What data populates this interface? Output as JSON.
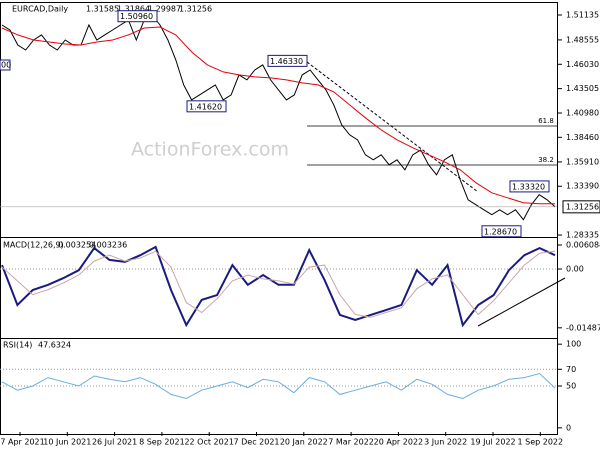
{
  "chart_data": [
    {
      "type": "line",
      "symbol": "EURCAD,Daily",
      "ohlc": {
        "open": 1.31585,
        "high": 1.31864,
        "low": 1.29987,
        "close": 1.31256
      },
      "watermark": "ActionForex.com",
      "series": [
        {
          "color": "#000000",
          "values": [
            1.501,
            1.4958,
            1.4803,
            1.4751,
            1.4855,
            1.4907,
            1.4803,
            1.4751,
            1.4855,
            1.4803,
            1.4803,
            1.501,
            1.4855,
            1.4907,
            1.4958,
            1.501,
            1.5062,
            1.4855,
            1.5062,
            1.5114,
            1.501,
            1.4855,
            1.4648,
            1.4389,
            1.4234,
            1.4286,
            1.4337,
            1.4389,
            1.4234,
            1.4286,
            1.4493,
            1.4441,
            1.4544,
            1.4596,
            1.4441,
            1.4337,
            1.4234,
            1.4286,
            1.4493,
            1.4544,
            1.4441,
            1.4337,
            1.4182,
            1.3975,
            1.3872,
            1.382,
            1.3665,
            1.3613,
            1.3665,
            1.3561,
            1.3613,
            1.3509,
            1.3665,
            1.3716,
            1.3561,
            1.3458,
            1.3613,
            1.3665,
            1.3406,
            1.3199,
            1.3147,
            1.3095,
            1.3044,
            1.3095,
            1.3044,
            1.3095,
            1.2992,
            1.3147,
            1.3251,
            1.3199,
            1.31256
          ]
        },
        {
          "color": "#e8000b",
          "values": [
            1.4979,
            1.4907,
            1.4855,
            1.4834,
            1.4813,
            1.4803,
            1.4834,
            1.4855,
            1.4907,
            1.4979,
            1.4989,
            1.4907,
            1.4731,
            1.4596,
            1.4524,
            1.4493,
            1.4472,
            1.4462,
            1.4441,
            1.441,
            1.4389,
            1.4317,
            1.4182,
            1.4048,
            1.3923,
            1.382,
            1.3737,
            1.3665,
            1.3592,
            1.3509,
            1.3375,
            1.3271,
            1.3219,
            1.3168,
            1.3157,
            1.3157
          ]
        }
      ],
      "ylim": [
        1.2813,
        1.5238
      ],
      "yticks": [
        1.51135,
        1.48555,
        {
          "value": 1.4603,
          "label": "1.46030"
        },
        1.43505,
        {
          "value": 1.4098,
          "label": "1.40980"
        },
        {
          "value": 1.3846,
          "label": "1.38460"
        },
        {
          "value": 1.3591,
          "label": "1.35910"
        },
        {
          "value": 1.3339,
          "label": "1.33390"
        },
        1.28335
      ],
      "annotations": [
        {
          "value": 1.5096,
          "label": "1.50960"
        },
        {
          "value": 1.4162,
          "label": "1.41620"
        },
        {
          "value": 1.4633,
          "label": "1.46330"
        },
        {
          "value": 1.3332,
          "label": "1.33320"
        },
        {
          "value": 1.2867,
          "label": "1.28670"
        }
      ],
      "partial_label": "00",
      "fib_levels": [
        61.8,
        38.2
      ]
    },
    {
      "type": "line",
      "indicator": "MACD(12,26,9)",
      "macd_value": 0.003254,
      "signal_value": 0.003236,
      "series": [
        {
          "color": "#1a1a80",
          "values": [
            0.001,
            -0.0091,
            -0.0053,
            -0.004,
            -0.0023,
            -0.0003,
            0.0053,
            0.0023,
            0.0018,
            0.0035,
            0.0056,
            -0.0053,
            -0.0142,
            -0.0078,
            -0.0066,
            0.001,
            -0.004,
            -0.0015,
            -0.004,
            -0.004,
            0.0048,
            -0.0028,
            -0.0116,
            -0.0129,
            -0.0116,
            -0.0104,
            -0.0091,
            -0.0003,
            -0.004,
            0.001,
            -0.0142,
            -0.0091,
            -0.0066,
            -0.0003,
            0.0035,
            0.0053,
            0.0035
          ]
        },
        {
          "color": "#c8a8a8",
          "values": [
            0.0005,
            -0.003,
            -0.0065,
            -0.0052,
            -0.0035,
            -0.0015,
            0.002,
            0.0035,
            0.002,
            0.0028,
            0.0045,
            0.0005,
            -0.0085,
            -0.011,
            -0.0075,
            -0.003,
            -0.0015,
            -0.0025,
            -0.003,
            -0.0038,
            0.0005,
            0.001,
            -0.0065,
            -0.0115,
            -0.0122,
            -0.011,
            -0.0098,
            -0.005,
            -0.0025,
            -0.0015,
            -0.0065,
            -0.0115,
            -0.008,
            -0.0035,
            0.001,
            0.004,
            0.0045
          ]
        }
      ],
      "ylim": [
        -0.0172,
        0.0076
      ],
      "yticks": [
        0.006084,
        {
          "value": 0,
          "label": "0.00"
        },
        -0.014876
      ]
    },
    {
      "type": "line",
      "indicator": "RSI(14)",
      "rsi_value": 47.6324,
      "series": [
        {
          "color": "#6aaee0",
          "values": [
            55,
            45,
            50,
            60,
            55,
            50,
            62,
            58,
            55,
            60,
            52,
            40,
            35,
            45,
            50,
            55,
            48,
            58,
            55,
            42,
            60,
            55,
            40,
            45,
            50,
            55,
            45,
            58,
            52,
            40,
            35,
            45,
            50,
            58,
            60,
            65,
            47.6324
          ]
        }
      ],
      "ylim": [
        -5,
        105
      ],
      "yticks": [
        100,
        70,
        50,
        0
      ],
      "x_labels": [
        "27 Apr 2021",
        "10 Jun 2021",
        "26 Jul 2021",
        "8 Sep 2021",
        "22 Oct 2021",
        "7 Dec 2021",
        "20 Jan 2022",
        "7 Mar 2022",
        "20 Apr 2022",
        "3 Jun 2022",
        "19 Jul 2022",
        "1 Sep 2022"
      ]
    }
  ]
}
